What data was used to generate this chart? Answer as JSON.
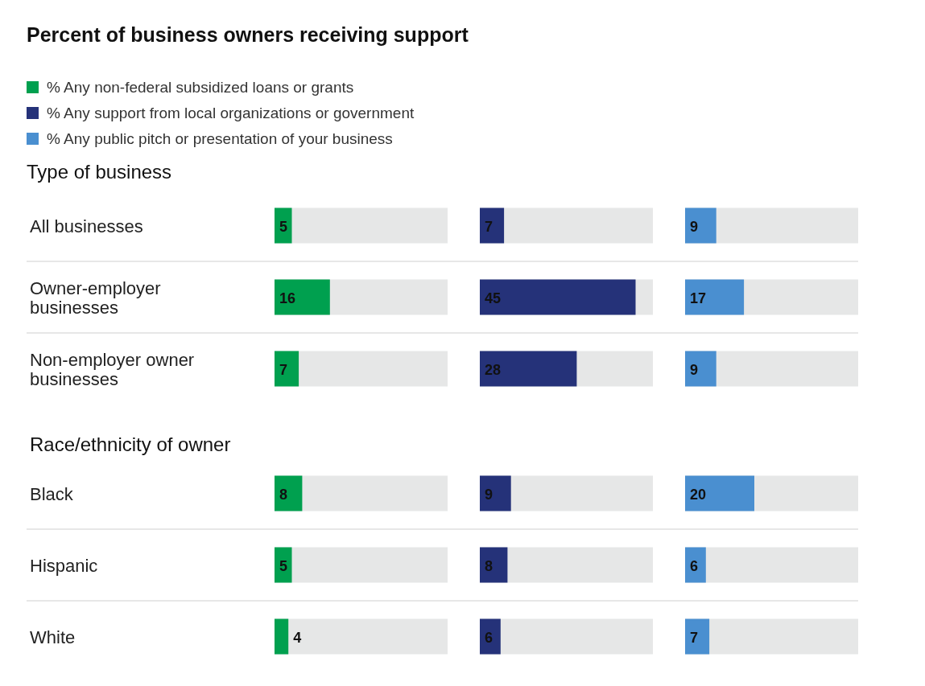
{
  "chart_data": [
    {
      "type": "bar",
      "orientation": "horizontal",
      "title": "Percent of business owners receiving support",
      "subtitle": "Type of business",
      "categories": [
        "All businesses",
        "Owner-employer businesses",
        "Non-employer owner businesses"
      ],
      "series": [
        {
          "name": "% Any non-federal subsidized loans or grants",
          "color": "#00a04f",
          "values": [
            5,
            16,
            7
          ]
        }
      ],
      "xlim": [
        0,
        50
      ],
      "tick_labels": false,
      "data_labels": true,
      "legend": "top left"
    },
    {
      "type": "bar",
      "orientation": "horizontal",
      "categories": [
        null,
        null,
        null
      ],
      "series": [
        {
          "name": "% Any support from local organizations or government",
          "color": "#253279",
          "values": [
            7,
            45,
            28
          ]
        }
      ],
      "xlim": [
        0,
        50
      ],
      "tick_labels": false,
      "data_labels": true,
      "legend": "top left"
    },
    {
      "type": "bar",
      "orientation": "horizontal",
      "categories": [
        null,
        null,
        null
      ],
      "series": [
        {
          "name": "% Any public pitch or presentation of your business",
          "color": "#4a8fd0",
          "values": [
            9,
            17,
            9
          ]
        }
      ],
      "xlim": [
        0,
        50
      ],
      "tick_labels": false,
      "data_labels": true,
      "legend": "top left"
    },
    {
      "type": "bar",
      "orientation": "horizontal",
      "title": "Race/ethnicity of owner",
      "categories": [
        "Black",
        "Hispanic",
        "White"
      ],
      "series": [
        {
          "color": "#00a04f",
          "values": [
            8,
            5,
            4
          ]
        }
      ],
      "xlim": [
        0,
        50
      ],
      "tick_labels": false,
      "data_labels": true
    },
    {
      "type": "bar",
      "orientation": "horizontal",
      "categories": [
        null,
        null,
        null
      ],
      "series": [
        {
          "color": "#253279",
          "values": [
            9,
            8,
            6
          ]
        }
      ],
      "xlim": [
        0,
        50
      ],
      "tick_labels": false,
      "data_labels": true
    },
    {
      "type": "bar",
      "orientation": "horizontal",
      "categories": [
        null,
        null,
        null
      ],
      "series": [
        {
          "color": "#4a8fd0",
          "values": [
            20,
            6,
            7
          ]
        }
      ],
      "xlim": [
        0,
        50
      ],
      "tick_labels": false,
      "data_labels": true
    }
  ]
}
